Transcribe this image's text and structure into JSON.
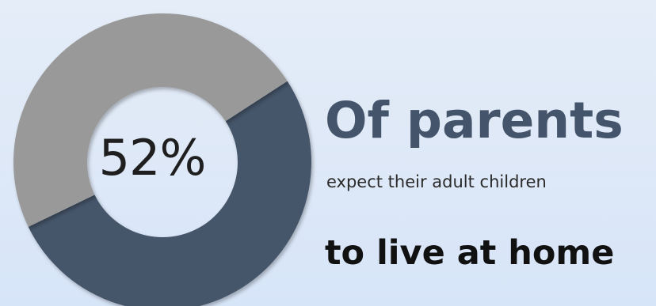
{
  "chart_data": {
    "type": "pie",
    "variant": "donut",
    "values": [
      52,
      48
    ],
    "colors": [
      "#44546a",
      "#999999"
    ],
    "center_label": "52%"
  },
  "text": {
    "headline": "Of parents",
    "subline": "expect their adult children",
    "bottomline": "to live at home"
  }
}
